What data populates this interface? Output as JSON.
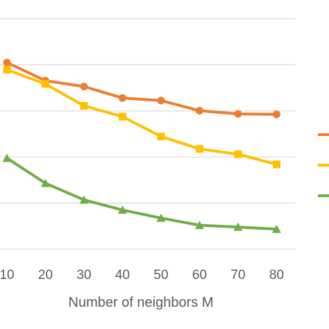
{
  "chart_data": {
    "type": "line",
    "title": "",
    "xlabel": "Number of neighbors M",
    "ylabel": "",
    "categories": [
      "10",
      "20",
      "30",
      "40",
      "50",
      "60",
      "70",
      "80"
    ],
    "grid": true,
    "legend_placement": "right",
    "ylim": [
      0,
      1
    ],
    "series": [
      {
        "color": "#ED7D31",
        "marker": "circle",
        "values": [
          0.81,
          0.731,
          0.706,
          0.656,
          0.645,
          0.601,
          0.587,
          0.585
        ]
      },
      {
        "color": "#FFC000",
        "marker": "square",
        "values": [
          0.779,
          0.717,
          0.622,
          0.575,
          0.489,
          0.435,
          0.412,
          0.368
        ]
      },
      {
        "color": "#70AD47",
        "marker": "triangle",
        "values": [
          0.395,
          0.286,
          0.214,
          0.17,
          0.135,
          0.104,
          0.096,
          0.087
        ]
      }
    ]
  }
}
